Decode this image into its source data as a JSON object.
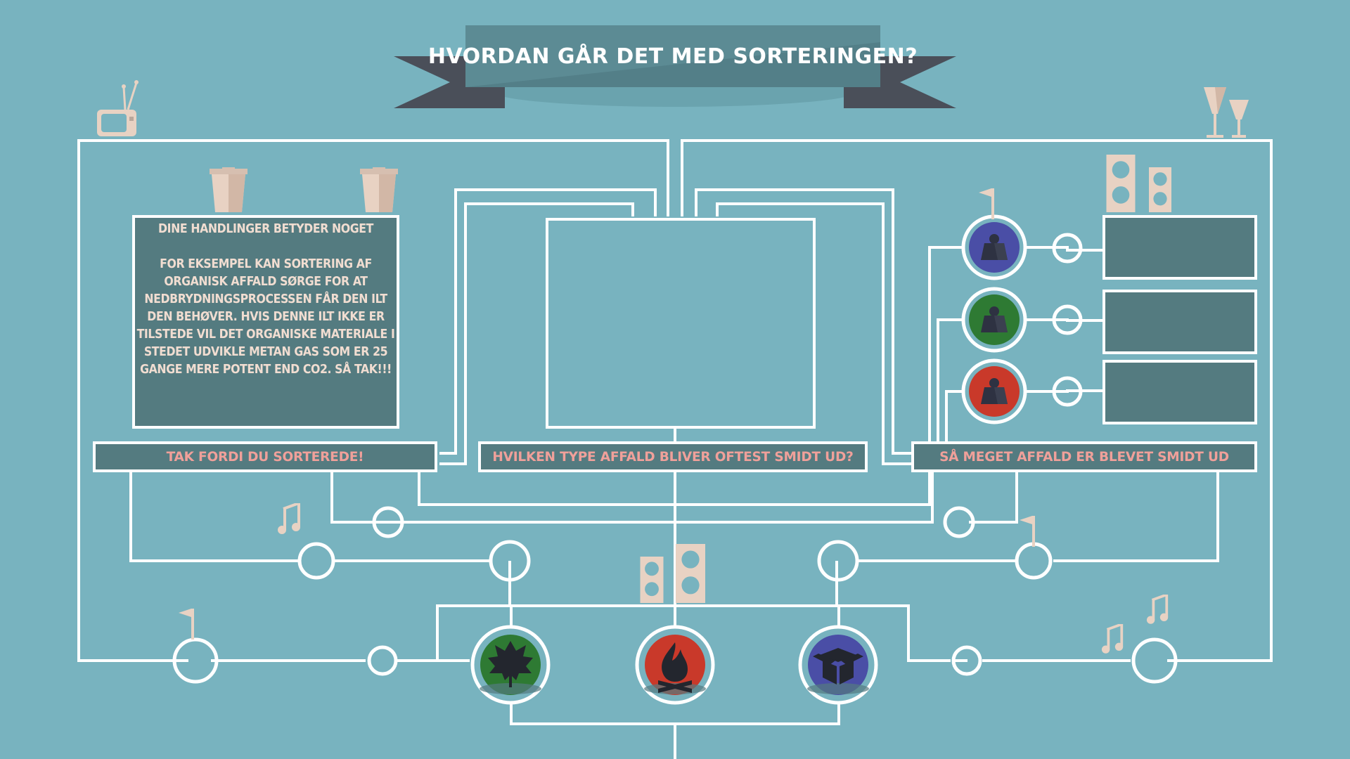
{
  "title": "HVORDAN GÅR DET MED SORTERINGEN?",
  "info_box": {
    "heading": "DINE HANDLINGER BETYDER NOGET",
    "body": "FOR EKSEMPEL KAN SORTERING AF ORGANISK AFFALD SØRGE FOR AT NEDBRYDNINGSPROCESSEN FÅR DEN ILT DEN BEHØVER. HVIS DENNE ILT IKKE ER TILSTEDE VIL DET ORGANISKE MATERIALE I STEDET UDVIKLE METAN GAS SOM ER 25 GANGE MERE POTENT END CO2. SÅ TAK!!!"
  },
  "labels": {
    "left": "TAK FORDI DU SORTEREDE!",
    "center": "HVILKEN TYPE AFFALD BLIVER OFTEST SMIDT UD?",
    "right": "SÅ MEGET AFFALD ER BLEVET SMIDT UD"
  },
  "weight_items": [
    {
      "icon": "weight-icon",
      "color": "#4a4ea6"
    },
    {
      "icon": "weight-icon",
      "color": "#2e7a33"
    },
    {
      "icon": "weight-icon",
      "color": "#c9392a"
    }
  ],
  "waste_categories": [
    {
      "icon": "leaf-icon",
      "color": "#2e7a33"
    },
    {
      "icon": "fire-icon",
      "color": "#c9392a"
    },
    {
      "icon": "box-icon",
      "color": "#4a4ea6"
    }
  ],
  "colors": {
    "background": "#78b3bf",
    "panel": "#547b80",
    "ribbon": "#4a4f59",
    "line": "#ffffff",
    "label_text": "#f0a09a",
    "deco": "#e8d2c3"
  }
}
